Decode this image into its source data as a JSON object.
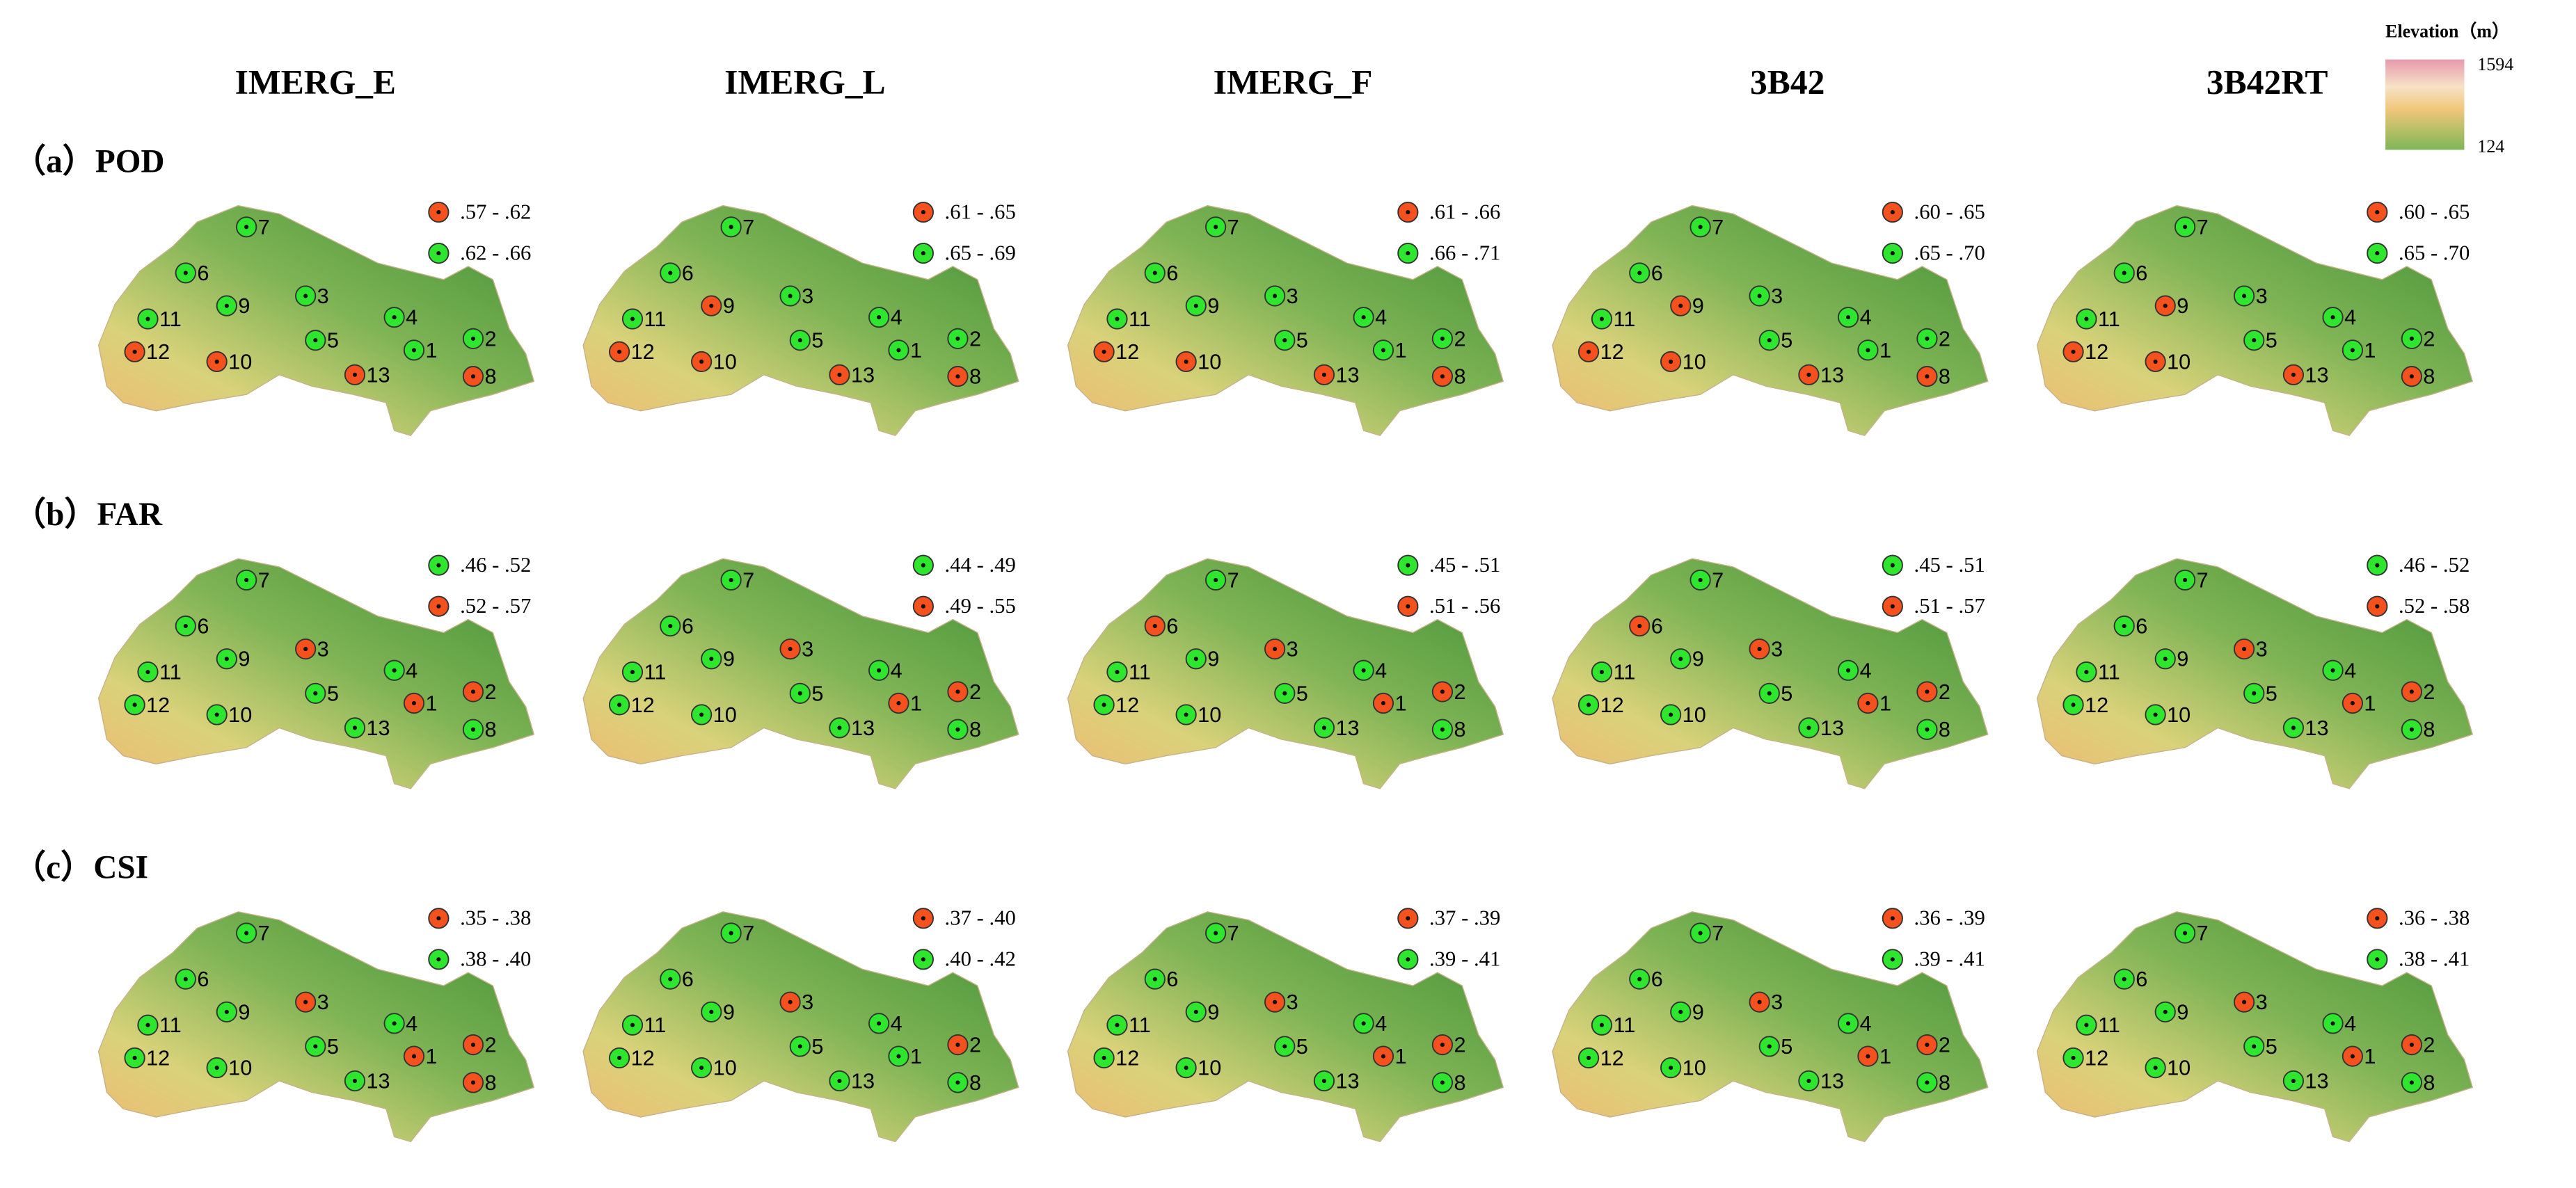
{
  "columns": [
    "IMERG_E",
    "IMERG_L",
    "IMERG_F",
    "3B42",
    "3B42RT"
  ],
  "stations": [
    "1",
    "2",
    "3",
    "4",
    "5",
    "6",
    "7",
    "8",
    "9",
    "10",
    "11",
    "12",
    "13"
  ],
  "elevation": {
    "title": "Elevation（m）",
    "max": "1594",
    "min": "124"
  },
  "rows": [
    {
      "label": "（a）POD",
      "panels": [
        {
          "legend": [
            {
              "label": ".57 - .62",
              "color": "#f4511e"
            },
            {
              "label": ".62 - .66",
              "color": "#2ee62e"
            }
          ],
          "station_colors": [
            "#2ee62e",
            "#2ee62e",
            "#2ee62e",
            "#2ee62e",
            "#2ee62e",
            "#2ee62e",
            "#2ee62e",
            "#f4511e",
            "#2ee62e",
            "#f4511e",
            "#2ee62e",
            "#f4511e",
            "#f4511e"
          ]
        },
        {
          "legend": [
            {
              "label": ".61 - .65",
              "color": "#f4511e"
            },
            {
              "label": ".65 - .69",
              "color": "#2ee62e"
            }
          ],
          "station_colors": [
            "#2ee62e",
            "#2ee62e",
            "#2ee62e",
            "#2ee62e",
            "#2ee62e",
            "#2ee62e",
            "#2ee62e",
            "#f4511e",
            "#f4511e",
            "#f4511e",
            "#2ee62e",
            "#f4511e",
            "#f4511e"
          ]
        },
        {
          "legend": [
            {
              "label": ".61 - .66",
              "color": "#f4511e"
            },
            {
              "label": ".66 - .71",
              "color": "#2ee62e"
            }
          ],
          "station_colors": [
            "#2ee62e",
            "#2ee62e",
            "#2ee62e",
            "#2ee62e",
            "#2ee62e",
            "#2ee62e",
            "#2ee62e",
            "#f4511e",
            "#2ee62e",
            "#f4511e",
            "#2ee62e",
            "#f4511e",
            "#f4511e"
          ]
        },
        {
          "legend": [
            {
              "label": ".60 - .65",
              "color": "#f4511e"
            },
            {
              "label": ".65 - .70",
              "color": "#2ee62e"
            }
          ],
          "station_colors": [
            "#2ee62e",
            "#2ee62e",
            "#2ee62e",
            "#2ee62e",
            "#2ee62e",
            "#2ee62e",
            "#2ee62e",
            "#f4511e",
            "#f4511e",
            "#f4511e",
            "#2ee62e",
            "#f4511e",
            "#f4511e"
          ]
        },
        {
          "legend": [
            {
              "label": ".60 - .65",
              "color": "#f4511e"
            },
            {
              "label": ".65 - .70",
              "color": "#2ee62e"
            }
          ],
          "station_colors": [
            "#2ee62e",
            "#2ee62e",
            "#2ee62e",
            "#2ee62e",
            "#2ee62e",
            "#2ee62e",
            "#2ee62e",
            "#f4511e",
            "#f4511e",
            "#f4511e",
            "#2ee62e",
            "#f4511e",
            "#f4511e"
          ]
        }
      ]
    },
    {
      "label": "（b）FAR",
      "panels": [
        {
          "legend": [
            {
              "label": ".46 - .52",
              "color": "#2ee62e"
            },
            {
              "label": ".52 - .57",
              "color": "#f4511e"
            }
          ],
          "station_colors": [
            "#f4511e",
            "#f4511e",
            "#f4511e",
            "#2ee62e",
            "#2ee62e",
            "#2ee62e",
            "#2ee62e",
            "#2ee62e",
            "#2ee62e",
            "#2ee62e",
            "#2ee62e",
            "#2ee62e",
            "#2ee62e"
          ]
        },
        {
          "legend": [
            {
              "label": ".44 - .49",
              "color": "#2ee62e"
            },
            {
              "label": ".49 - .55",
              "color": "#f4511e"
            }
          ],
          "station_colors": [
            "#f4511e",
            "#f4511e",
            "#f4511e",
            "#2ee62e",
            "#2ee62e",
            "#2ee62e",
            "#2ee62e",
            "#2ee62e",
            "#2ee62e",
            "#2ee62e",
            "#2ee62e",
            "#2ee62e",
            "#2ee62e"
          ]
        },
        {
          "legend": [
            {
              "label": ".45 - .51",
              "color": "#2ee62e"
            },
            {
              "label": ".51 - .56",
              "color": "#f4511e"
            }
          ],
          "station_colors": [
            "#f4511e",
            "#f4511e",
            "#f4511e",
            "#2ee62e",
            "#2ee62e",
            "#f4511e",
            "#2ee62e",
            "#2ee62e",
            "#2ee62e",
            "#2ee62e",
            "#2ee62e",
            "#2ee62e",
            "#2ee62e"
          ]
        },
        {
          "legend": [
            {
              "label": ".45 - .51",
              "color": "#2ee62e"
            },
            {
              "label": ".51 - .57",
              "color": "#f4511e"
            }
          ],
          "station_colors": [
            "#f4511e",
            "#f4511e",
            "#f4511e",
            "#2ee62e",
            "#2ee62e",
            "#f4511e",
            "#2ee62e",
            "#2ee62e",
            "#2ee62e",
            "#2ee62e",
            "#2ee62e",
            "#2ee62e",
            "#2ee62e"
          ]
        },
        {
          "legend": [
            {
              "label": ".46 - .52",
              "color": "#2ee62e"
            },
            {
              "label": ".52 - .58",
              "color": "#f4511e"
            }
          ],
          "station_colors": [
            "#f4511e",
            "#f4511e",
            "#f4511e",
            "#2ee62e",
            "#2ee62e",
            "#2ee62e",
            "#2ee62e",
            "#2ee62e",
            "#2ee62e",
            "#2ee62e",
            "#2ee62e",
            "#2ee62e",
            "#2ee62e"
          ]
        }
      ]
    },
    {
      "label": "（c）CSI",
      "panels": [
        {
          "legend": [
            {
              "label": ".35 - .38",
              "color": "#f4511e"
            },
            {
              "label": ".38 - .40",
              "color": "#2ee62e"
            }
          ],
          "station_colors": [
            "#f4511e",
            "#f4511e",
            "#f4511e",
            "#2ee62e",
            "#2ee62e",
            "#2ee62e",
            "#2ee62e",
            "#f4511e",
            "#2ee62e",
            "#2ee62e",
            "#2ee62e",
            "#2ee62e",
            "#2ee62e"
          ]
        },
        {
          "legend": [
            {
              "label": ".37 - .40",
              "color": "#f4511e"
            },
            {
              "label": ".40 - .42",
              "color": "#2ee62e"
            }
          ],
          "station_colors": [
            "#2ee62e",
            "#f4511e",
            "#f4511e",
            "#2ee62e",
            "#2ee62e",
            "#2ee62e",
            "#2ee62e",
            "#2ee62e",
            "#2ee62e",
            "#2ee62e",
            "#2ee62e",
            "#2ee62e",
            "#2ee62e"
          ]
        },
        {
          "legend": [
            {
              "label": ".37 - .39",
              "color": "#f4511e"
            },
            {
              "label": ".39 - .41",
              "color": "#2ee62e"
            }
          ],
          "station_colors": [
            "#f4511e",
            "#f4511e",
            "#f4511e",
            "#2ee62e",
            "#2ee62e",
            "#2ee62e",
            "#2ee62e",
            "#2ee62e",
            "#2ee62e",
            "#2ee62e",
            "#2ee62e",
            "#2ee62e",
            "#2ee62e"
          ]
        },
        {
          "legend": [
            {
              "label": ".36 - .39",
              "color": "#f4511e"
            },
            {
              "label": ".39 - .41",
              "color": "#2ee62e"
            }
          ],
          "station_colors": [
            "#f4511e",
            "#f4511e",
            "#f4511e",
            "#2ee62e",
            "#2ee62e",
            "#2ee62e",
            "#2ee62e",
            "#2ee62e",
            "#2ee62e",
            "#2ee62e",
            "#2ee62e",
            "#2ee62e",
            "#2ee62e"
          ]
        },
        {
          "legend": [
            {
              "label": ".36 - .38",
              "color": "#f4511e"
            },
            {
              "label": ".38 - .41",
              "color": "#2ee62e"
            }
          ],
          "station_colors": [
            "#f4511e",
            "#f4511e",
            "#f4511e",
            "#2ee62e",
            "#2ee62e",
            "#2ee62e",
            "#2ee62e",
            "#2ee62e",
            "#2ee62e",
            "#2ee62e",
            "#2ee62e",
            "#2ee62e",
            "#2ee62e"
          ]
        }
      ]
    }
  ]
}
